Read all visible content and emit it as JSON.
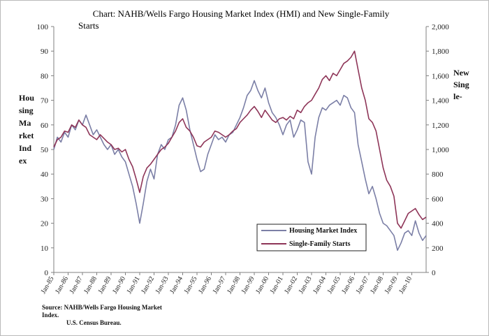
{
  "title_line1": "Chart:  NAHB/Wells Fargo Housing Market Index (HMI) and New Single-Family",
  "title_line2": "Starts",
  "left_axis_label": [
    "Hou",
    "sing",
    "Ma",
    "rket",
    "Ind",
    "ex"
  ],
  "right_axis_label": [
    "New",
    "Sing",
    "le-"
  ],
  "source_line1": "Source: NAHB/Wells Fargo Housing Market",
  "source_line2": "Index.",
  "source_line3": "U.S. Census Bureau.",
  "colors": {
    "hmi": "#7b7fa6",
    "starts": "#8e3558"
  },
  "chart_data": {
    "type": "line",
    "title": "Chart:  NAHB/Wells Fargo Housing Market Index (HMI) and New Single-Family Starts",
    "x_tick_labels": [
      "Jan-85",
      "Jan-86",
      "Jan-87",
      "Jan-88",
      "Jan-89",
      "Jan-90",
      "Jan-91",
      "Jan-92",
      "Jan-93",
      "Jan-94",
      "Jan-95",
      "Jan-96",
      "Jan-97",
      "Jan-98",
      "Jan-99",
      "Jan-00",
      "Jan-01",
      "Jan-02",
      "Jan-03",
      "Jan-04",
      "Jan-05",
      "Jan-06",
      "Jan-07",
      "Jan-08",
      "Jan-09",
      "Jan-10"
    ],
    "x_range": [
      1985.0,
      2011.0
    ],
    "y_left": {
      "min": 0,
      "max": 100,
      "ticks": [
        0,
        10,
        20,
        30,
        40,
        50,
        60,
        70,
        80,
        90,
        100
      ],
      "label": "Housing Market Index"
    },
    "y_right": {
      "min": 0,
      "max": 2000,
      "ticks": [
        "0",
        "200",
        "400",
        "600",
        "800",
        "1,000",
        "1,200",
        "1,400",
        "1,600",
        "1,800",
        "2,000"
      ],
      "label": "New Single-"
    },
    "grid": false,
    "legend": {
      "position": "lower-right",
      "entries": [
        "Housing Market Index",
        "Single-Family Starts"
      ]
    },
    "series": [
      {
        "name": "Housing Market Index",
        "axis": "left",
        "points": [
          [
            1985.0,
            50
          ],
          [
            1985.25,
            55
          ],
          [
            1985.5,
            53
          ],
          [
            1985.75,
            57
          ],
          [
            1986.0,
            55
          ],
          [
            1986.25,
            60
          ],
          [
            1986.5,
            58
          ],
          [
            1986.75,
            62
          ],
          [
            1987.0,
            60
          ],
          [
            1987.25,
            64
          ],
          [
            1987.5,
            60
          ],
          [
            1987.75,
            56
          ],
          [
            1988.0,
            58
          ],
          [
            1988.25,
            55
          ],
          [
            1988.5,
            52
          ],
          [
            1988.75,
            50
          ],
          [
            1989.0,
            52
          ],
          [
            1989.25,
            48
          ],
          [
            1989.5,
            50
          ],
          [
            1989.75,
            47
          ],
          [
            1990.0,
            45
          ],
          [
            1990.25,
            40
          ],
          [
            1990.5,
            35
          ],
          [
            1990.75,
            28
          ],
          [
            1991.0,
            20
          ],
          [
            1991.25,
            28
          ],
          [
            1991.5,
            37
          ],
          [
            1991.75,
            42
          ],
          [
            1992.0,
            38
          ],
          [
            1992.25,
            48
          ],
          [
            1992.5,
            52
          ],
          [
            1992.75,
            50
          ],
          [
            1993.0,
            54
          ],
          [
            1993.25,
            55
          ],
          [
            1993.5,
            60
          ],
          [
            1993.75,
            68
          ],
          [
            1994.0,
            71
          ],
          [
            1994.25,
            66
          ],
          [
            1994.5,
            58
          ],
          [
            1994.75,
            52
          ],
          [
            1995.0,
            46
          ],
          [
            1995.25,
            41
          ],
          [
            1995.5,
            42
          ],
          [
            1995.75,
            48
          ],
          [
            1996.0,
            52
          ],
          [
            1996.25,
            56
          ],
          [
            1996.5,
            54
          ],
          [
            1996.75,
            55
          ],
          [
            1997.0,
            53
          ],
          [
            1997.25,
            56
          ],
          [
            1997.5,
            57
          ],
          [
            1997.75,
            60
          ],
          [
            1998.0,
            63
          ],
          [
            1998.25,
            67
          ],
          [
            1998.5,
            72
          ],
          [
            1998.75,
            74
          ],
          [
            1999.0,
            78
          ],
          [
            1999.25,
            74
          ],
          [
            1999.5,
            71
          ],
          [
            1999.75,
            75
          ],
          [
            2000.0,
            69
          ],
          [
            2000.25,
            65
          ],
          [
            2000.5,
            63
          ],
          [
            2000.75,
            60
          ],
          [
            2001.0,
            56
          ],
          [
            2001.25,
            60
          ],
          [
            2001.5,
            62
          ],
          [
            2001.75,
            55
          ],
          [
            2002.0,
            58
          ],
          [
            2002.25,
            62
          ],
          [
            2002.5,
            61
          ],
          [
            2002.75,
            45
          ],
          [
            2003.0,
            40
          ],
          [
            2003.25,
            55
          ],
          [
            2003.5,
            63
          ],
          [
            2003.75,
            67
          ],
          [
            2004.0,
            66
          ],
          [
            2004.25,
            68
          ],
          [
            2004.5,
            69
          ],
          [
            2004.75,
            70
          ],
          [
            2005.0,
            68
          ],
          [
            2005.25,
            72
          ],
          [
            2005.5,
            71
          ],
          [
            2005.75,
            67
          ],
          [
            2006.0,
            65
          ],
          [
            2006.25,
            52
          ],
          [
            2006.5,
            45
          ],
          [
            2006.75,
            38
          ],
          [
            2007.0,
            32
          ],
          [
            2007.25,
            35
          ],
          [
            2007.5,
            30
          ],
          [
            2007.75,
            24
          ],
          [
            2008.0,
            20
          ],
          [
            2008.25,
            19
          ],
          [
            2008.5,
            17
          ],
          [
            2008.75,
            15
          ],
          [
            2009.0,
            9
          ],
          [
            2009.25,
            12
          ],
          [
            2009.5,
            16
          ],
          [
            2009.75,
            17
          ],
          [
            2010.0,
            15
          ],
          [
            2010.25,
            21
          ],
          [
            2010.5,
            16
          ],
          [
            2010.75,
            13
          ],
          [
            2011.0,
            15
          ]
        ]
      },
      {
        "name": "Single-Family Starts",
        "axis": "right",
        "points": [
          [
            1985.0,
            1020
          ],
          [
            1985.25,
            1080
          ],
          [
            1985.5,
            1100
          ],
          [
            1985.75,
            1150
          ],
          [
            1986.0,
            1140
          ],
          [
            1986.25,
            1200
          ],
          [
            1986.5,
            1180
          ],
          [
            1986.75,
            1240
          ],
          [
            1987.0,
            1200
          ],
          [
            1987.25,
            1180
          ],
          [
            1987.5,
            1120
          ],
          [
            1987.75,
            1100
          ],
          [
            1988.0,
            1080
          ],
          [
            1988.25,
            1120
          ],
          [
            1988.5,
            1090
          ],
          [
            1988.75,
            1060
          ],
          [
            1989.0,
            1040
          ],
          [
            1989.25,
            1000
          ],
          [
            1989.5,
            1010
          ],
          [
            1989.75,
            980
          ],
          [
            1990.0,
            1000
          ],
          [
            1990.25,
            920
          ],
          [
            1990.5,
            860
          ],
          [
            1990.75,
            760
          ],
          [
            1991.0,
            650
          ],
          [
            1991.25,
            780
          ],
          [
            1991.5,
            850
          ],
          [
            1991.75,
            880
          ],
          [
            1992.0,
            920
          ],
          [
            1992.25,
            960
          ],
          [
            1992.5,
            1000
          ],
          [
            1992.75,
            1020
          ],
          [
            1993.0,
            1050
          ],
          [
            1993.25,
            1100
          ],
          [
            1993.5,
            1150
          ],
          [
            1993.75,
            1220
          ],
          [
            1994.0,
            1250
          ],
          [
            1994.25,
            1180
          ],
          [
            1994.5,
            1150
          ],
          [
            1994.75,
            1100
          ],
          [
            1995.0,
            1030
          ],
          [
            1995.25,
            1020
          ],
          [
            1995.5,
            1060
          ],
          [
            1995.75,
            1080
          ],
          [
            1996.0,
            1100
          ],
          [
            1996.25,
            1150
          ],
          [
            1996.5,
            1140
          ],
          [
            1996.75,
            1120
          ],
          [
            1997.0,
            1100
          ],
          [
            1997.25,
            1120
          ],
          [
            1997.5,
            1150
          ],
          [
            1997.75,
            1170
          ],
          [
            1998.0,
            1220
          ],
          [
            1998.25,
            1250
          ],
          [
            1998.5,
            1280
          ],
          [
            1998.75,
            1320
          ],
          [
            1999.0,
            1350
          ],
          [
            1999.25,
            1310
          ],
          [
            1999.5,
            1260
          ],
          [
            1999.75,
            1320
          ],
          [
            2000.0,
            1280
          ],
          [
            2000.25,
            1240
          ],
          [
            2000.5,
            1220
          ],
          [
            2000.75,
            1250
          ],
          [
            2001.0,
            1260
          ],
          [
            2001.25,
            1240
          ],
          [
            2001.5,
            1270
          ],
          [
            2001.75,
            1250
          ],
          [
            2002.0,
            1320
          ],
          [
            2002.25,
            1300
          ],
          [
            2002.5,
            1350
          ],
          [
            2002.75,
            1380
          ],
          [
            2003.0,
            1400
          ],
          [
            2003.25,
            1450
          ],
          [
            2003.5,
            1500
          ],
          [
            2003.75,
            1570
          ],
          [
            2004.0,
            1600
          ],
          [
            2004.25,
            1560
          ],
          [
            2004.5,
            1620
          ],
          [
            2004.75,
            1600
          ],
          [
            2005.0,
            1650
          ],
          [
            2005.25,
            1700
          ],
          [
            2005.5,
            1720
          ],
          [
            2005.75,
            1750
          ],
          [
            2006.0,
            1800
          ],
          [
            2006.25,
            1650
          ],
          [
            2006.5,
            1500
          ],
          [
            2006.75,
            1400
          ],
          [
            2007.0,
            1250
          ],
          [
            2007.25,
            1220
          ],
          [
            2007.5,
            1150
          ],
          [
            2007.75,
            1000
          ],
          [
            2008.0,
            850
          ],
          [
            2008.25,
            750
          ],
          [
            2008.5,
            700
          ],
          [
            2008.75,
            620
          ],
          [
            2009.0,
            400
          ],
          [
            2009.25,
            360
          ],
          [
            2009.5,
            420
          ],
          [
            2009.75,
            480
          ],
          [
            2010.0,
            500
          ],
          [
            2010.25,
            520
          ],
          [
            2010.5,
            470
          ],
          [
            2010.75,
            430
          ],
          [
            2011.0,
            450
          ]
        ]
      }
    ]
  }
}
